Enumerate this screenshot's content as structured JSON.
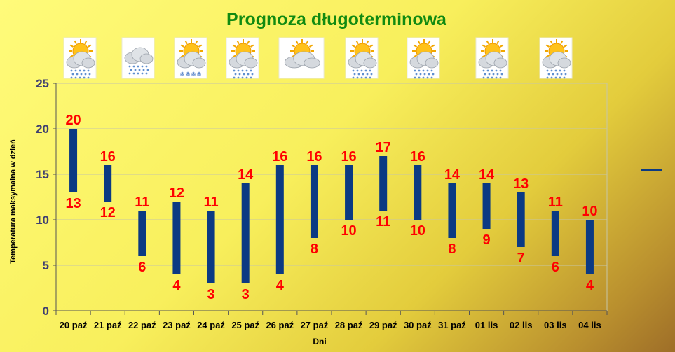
{
  "chart_data": {
    "type": "bar",
    "subtype": "floating-range",
    "title": "Prognoza długoterminowa",
    "xlabel": "Dni",
    "ylabel": "Temperatura maksymalna w dzień",
    "ylim": [
      0,
      25
    ],
    "yticks": [
      0,
      5,
      10,
      15,
      20,
      25
    ],
    "grid": true,
    "legend": "right",
    "categories": [
      "20 paź",
      "21 paź",
      "22 paź",
      "23 paź",
      "24 paź",
      "25 paź",
      "26 paź",
      "27 paź",
      "28 paź",
      "29 paź",
      "30 paź",
      "31 paź",
      "01 lis",
      "02 lis",
      "03 lis",
      "04 lis"
    ],
    "series": [
      {
        "values_high": [
          20,
          16,
          11,
          12,
          11,
          14,
          16,
          16,
          16,
          17,
          16,
          14,
          14,
          13,
          11,
          10
        ],
        "values_low": [
          13,
          12,
          6,
          4,
          3,
          3,
          4,
          8,
          10,
          11,
          10,
          8,
          9,
          7,
          6,
          4
        ]
      }
    ],
    "weather_icons": [
      "sun-cloud-rain-icon",
      "cloud-rain-icon",
      "sun-cloud-snow-icon",
      "sun-cloud-rain-icon",
      "sun-cloud-icon",
      "sun-cloud-rain-icon",
      "sun-cloud-rain-icon",
      "sun-cloud-rain-icon",
      "sun-cloud-rain-icon"
    ]
  },
  "colors": {
    "bar": "#0b3a83",
    "labels": "#ff0000",
    "title": "#118a11",
    "axis_text": "#404070",
    "grid": "#c6c6a6"
  }
}
